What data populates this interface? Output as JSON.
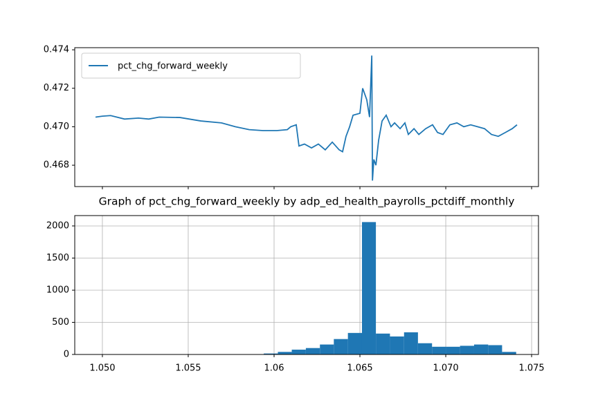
{
  "chart_data": [
    {
      "type": "line",
      "legend": "upper left",
      "series": [
        {
          "name": "pct_chg_forward_weekly",
          "color": "#1f77b4",
          "x": [
            1.0496,
            1.05,
            1.05048,
            1.05129,
            1.0521,
            1.0527,
            1.05331,
            1.05452,
            1.05573,
            1.05694,
            1.05774,
            1.05855,
            1.05935,
            1.06016,
            1.06077,
            1.06097,
            1.06129,
            1.06145,
            1.06177,
            1.06218,
            1.06258,
            1.06298,
            1.06339,
            1.06379,
            1.06399,
            1.06419,
            1.0644,
            1.0646,
            1.065,
            1.06516,
            1.0654,
            1.06556,
            1.06569,
            1.06573,
            1.06581,
            1.06593,
            1.06609,
            1.06629,
            1.06653,
            1.06681,
            1.06702,
            1.06734,
            1.06762,
            1.06782,
            1.06815,
            1.06843,
            1.06883,
            1.06923,
            1.06952,
            1.06984,
            1.07024,
            1.07065,
            1.07105,
            1.07145,
            1.07185,
            1.07226,
            1.07266,
            1.07306,
            1.07347,
            1.07387,
            1.07415
          ],
          "values": [
            0.4705,
            0.47055,
            0.47058,
            0.4704,
            0.47045,
            0.4704,
            0.4705,
            0.47048,
            0.4703,
            0.4702,
            0.47,
            0.46985,
            0.4698,
            0.4698,
            0.46985,
            0.47,
            0.4701,
            0.469,
            0.4691,
            0.4689,
            0.4691,
            0.4688,
            0.4692,
            0.4688,
            0.4687,
            0.4695,
            0.47,
            0.4706,
            0.4707,
            0.472,
            0.4714,
            0.4705,
            0.4737,
            0.4672,
            0.4683,
            0.468,
            0.4693,
            0.4703,
            0.4706,
            0.47,
            0.4702,
            0.4699,
            0.4702,
            0.4696,
            0.4699,
            0.4696,
            0.4699,
            0.4701,
            0.4697,
            0.4696,
            0.4701,
            0.4702,
            0.47,
            0.4701,
            0.47,
            0.4699,
            0.4696,
            0.4695,
            0.4697,
            0.4699,
            0.4701
          ]
        }
      ],
      "xlim": [
        1.04839,
        1.0754
      ],
      "xticks": [
        1.05,
        1.055,
        1.06,
        1.065,
        1.07,
        1.075
      ],
      "ylim": [
        0.46689,
        0.47411
      ],
      "yticks": [
        {
          "value": 0.468,
          "label": "0.468"
        },
        {
          "value": 0.47,
          "label": "0.470"
        },
        {
          "value": 0.472,
          "label": "0.472"
        },
        {
          "value": 0.474,
          "label": "0.474"
        }
      ]
    },
    {
      "type": "histogram",
      "title": "Graph of pct_chg_forward_weekly by adp_ed_health_payrolls_pctdiff_monthly",
      "color": "#1f77b4",
      "grid": true,
      "bins": [
        1.0496,
        1.05042,
        1.05123,
        1.05205,
        1.05287,
        1.05368,
        1.0545,
        1.05532,
        1.05613,
        1.05695,
        1.05777,
        1.05858,
        1.0594,
        1.06022,
        1.06103,
        1.06185,
        1.06267,
        1.06348,
        1.0643,
        1.06512,
        1.06593,
        1.06675,
        1.06757,
        1.06838,
        1.0692,
        1.07002,
        1.07083,
        1.07165,
        1.07247,
        1.07328,
        1.0741
      ],
      "values": [
        2,
        1,
        1,
        1,
        1,
        1,
        1,
        1,
        1,
        1,
        1,
        2,
        15,
        40,
        75,
        100,
        155,
        240,
        335,
        2060,
        325,
        280,
        345,
        175,
        120,
        120,
        135,
        155,
        145,
        40
      ],
      "xlim": [
        1.04839,
        1.0754
      ],
      "xticks": [
        {
          "value": 1.05,
          "label": "1.050"
        },
        1.055,
        1.06,
        1.065,
        {
          "value": 1.07,
          "label": "1.070"
        },
        1.075
      ],
      "ylim": [
        0,
        2161
      ],
      "yticks": [
        0,
        500,
        1000,
        1500,
        2000
      ]
    }
  ]
}
